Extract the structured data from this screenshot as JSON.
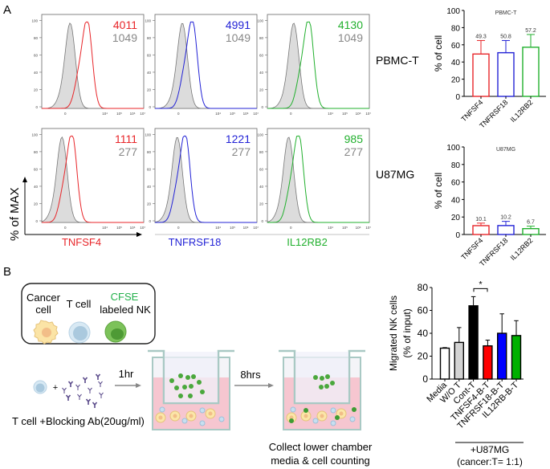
{
  "panel_labels": {
    "a": "A",
    "b": "B"
  },
  "flow": {
    "y_axis_label": "% of MAX",
    "y_ticks": [
      "0",
      "20",
      "40",
      "60",
      "80",
      "100"
    ],
    "x_ticks": [
      "0",
      "10⁴",
      "10⁵",
      "10⁶",
      "10⁷"
    ],
    "rows": [
      "PBMC-T",
      "U87MG"
    ],
    "markers": [
      {
        "name": "TNFSF4",
        "color": "#e8262a"
      },
      {
        "name": "TNFRSF18",
        "color": "#2323d6"
      },
      {
        "name": "IL12RB2",
        "color": "#22b02e"
      }
    ],
    "mfi": [
      [
        {
          "marker": "4011",
          "control": "1049"
        },
        {
          "marker": "4991",
          "control": "1049"
        },
        {
          "marker": "4130",
          "control": "1049"
        }
      ],
      [
        {
          "marker": "1111",
          "control": "277"
        },
        {
          "marker": "1221",
          "control": "277"
        },
        {
          "marker": "985",
          "control": "277"
        }
      ]
    ],
    "control_color": "#888888"
  },
  "chart_data": [
    {
      "type": "bar",
      "title": "PBMC-T",
      "ylabel": "% of cell",
      "ylim": [
        0,
        100
      ],
      "yticks": [
        "0",
        "20",
        "40",
        "60",
        "80",
        "100"
      ],
      "categories": [
        "TNFSF4",
        "TNFRSF18",
        "IL12RB2"
      ],
      "values": [
        49.3,
        50.8,
        57.2
      ],
      "labels": [
        "49.3",
        "50.8",
        "57.2"
      ],
      "error_upper": [
        65,
        65,
        72
      ],
      "colors": [
        "#e8262a",
        "#2323d6",
        "#22b02e"
      ]
    },
    {
      "type": "bar",
      "title": "U87MG",
      "ylabel": "% of cell",
      "ylim": [
        0,
        100
      ],
      "yticks": [
        "0",
        "20",
        "40",
        "60",
        "80",
        "100"
      ],
      "categories": [
        "TNFSF4",
        "TNFRSF18",
        "IL12RB2"
      ],
      "values": [
        10.1,
        10.2,
        6.7
      ],
      "labels": [
        "10.1",
        "10.2",
        "6.7"
      ],
      "error_upper": [
        13,
        15,
        9.5
      ],
      "colors": [
        "#e8262a",
        "#2323d6",
        "#22b02e"
      ]
    },
    {
      "type": "bar",
      "title": "",
      "ylabel": "Migrated NK cells",
      "ylabel2": "(% of input)",
      "ylim": [
        0,
        80
      ],
      "yticks": [
        "0",
        "20",
        "40",
        "60",
        "80"
      ],
      "categories": [
        "Media",
        "W/O T",
        "Cont-T",
        "TNFSF4-B-T",
        "TNFRSF18-B-T",
        "IL12RB-B-T"
      ],
      "values": [
        27,
        32,
        64,
        29,
        40,
        38
      ],
      "error_upper": [
        27.5,
        45,
        72,
        34,
        57,
        51
      ],
      "colors": [
        "#ffffff",
        "#d3d3d3",
        "#000000",
        "#ff0000",
        "#0000ff",
        "#00b000"
      ],
      "significance": {
        "between": [
          "Cont-T",
          "TNFSF4-B-T"
        ],
        "label": "*"
      },
      "group_label": "+U87MG",
      "group_sublabel": "(cancer:T= 1:1)"
    }
  ],
  "diagram": {
    "legend": {
      "cancer_cell": [
        "Cancer",
        "cell"
      ],
      "t_cell": "T cell",
      "nk_line1": "CFSE",
      "nk_line2": "labeled NK"
    },
    "step1_time": "1hr",
    "step2_time": "8hrs",
    "plus": "+",
    "step1_caption": "T cell +Blocking Ab(20ug/ml)",
    "final_caption": [
      "Collect lower chamber",
      "media  & cell counting"
    ]
  }
}
